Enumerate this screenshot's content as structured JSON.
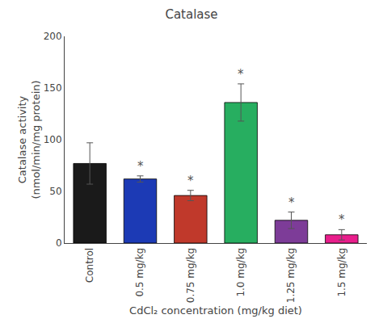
{
  "chart_data": {
    "type": "bar",
    "title": "Catalase",
    "xlabel": "CdCl₂ concentration (mg/kg diet)",
    "ylabel": "Catalase activity\n(nmol/min/mg protein)",
    "categories": [
      "Control",
      "0.5 mg/kg",
      "0.75 mg/kg",
      "1.0 mg/kg",
      "1.25 mg/kg",
      "1.5 mg/kg"
    ],
    "values": [
      77,
      62,
      46,
      136,
      22,
      8
    ],
    "errors": [
      20,
      3,
      5,
      18,
      8,
      5
    ],
    "colors": [
      "#1a1a1a",
      "#1c3ab5",
      "#c0392b",
      "#27ae60",
      "#7d3c98",
      "#e91e8c"
    ],
    "annotations": [
      {
        "x": "0.5 mg/kg",
        "text": "*"
      },
      {
        "x": "0.75 mg/kg",
        "text": "*"
      },
      {
        "x": "1.0 mg/kg",
        "text": "*"
      },
      {
        "x": "1.25 mg/kg",
        "text": "*"
      },
      {
        "x": "1.5 mg/kg",
        "text": "*"
      }
    ],
    "ylim": [
      0,
      200
    ],
    "yticks": [
      0,
      50,
      100,
      150,
      200
    ],
    "grid": false
  }
}
